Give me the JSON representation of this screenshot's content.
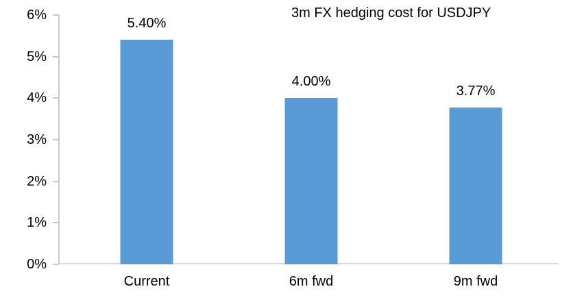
{
  "chart_data": {
    "type": "bar",
    "title": "3m FX hedging cost for USDJPY",
    "categories": [
      "Current",
      "6m fwd",
      "9m fwd"
    ],
    "values": [
      5.4,
      4.0,
      3.77
    ],
    "data_labels": [
      "5.40%",
      "4.00%",
      "3.77%"
    ],
    "xlabel": "",
    "ylabel": "",
    "ylim": [
      0,
      6
    ],
    "y_tick_labels": [
      "0%",
      "1%",
      "2%",
      "3%",
      "4%",
      "5%",
      "6%"
    ],
    "grid": false,
    "legend": false,
    "colors": {
      "bar": "#5b9bd5",
      "axis": "#c9c9c9",
      "baseline": "#d9d9d9",
      "text": "#000000"
    }
  }
}
